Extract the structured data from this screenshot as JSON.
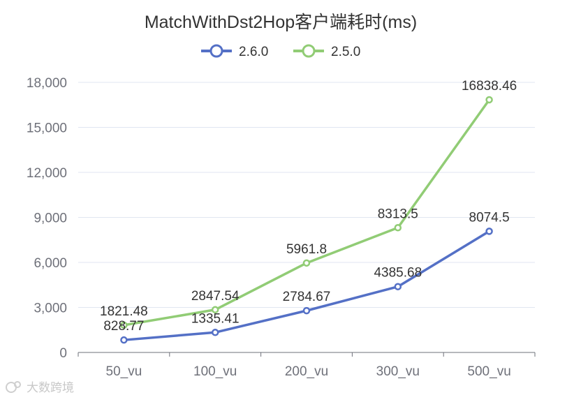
{
  "chart_data": {
    "type": "line",
    "title": "MatchWithDst2Hop客户端耗时(ms)",
    "categories": [
      "50_vu",
      "100_vu",
      "200_vu",
      "300_vu",
      "500_vu"
    ],
    "series": [
      {
        "name": "2.6.0",
        "color": "#5470c6",
        "values": [
          828.77,
          1335.41,
          2784.67,
          4385.68,
          8074.5
        ],
        "labels": [
          "828.77",
          "1335.41",
          "2784.67",
          "4385.68",
          "8074.5"
        ]
      },
      {
        "name": "2.5.0",
        "color": "#91cc75",
        "values": [
          1821.48,
          2847.54,
          5961.8,
          8313.5,
          16838.46
        ],
        "labels": [
          "1821.48",
          "2847.54",
          "5961.8",
          "8313.5",
          "16838.46"
        ]
      }
    ],
    "ylim": [
      0,
      18000
    ],
    "yticks": [
      0,
      3000,
      6000,
      9000,
      12000,
      15000,
      18000
    ],
    "ytick_labels": [
      "0",
      "3,000",
      "6,000",
      "9,000",
      "12,000",
      "15,000",
      "18,000"
    ],
    "xlabel": "",
    "ylabel": "",
    "grid": true,
    "legend_position": "top-center"
  },
  "watermark": {
    "text": "大数跨境"
  }
}
